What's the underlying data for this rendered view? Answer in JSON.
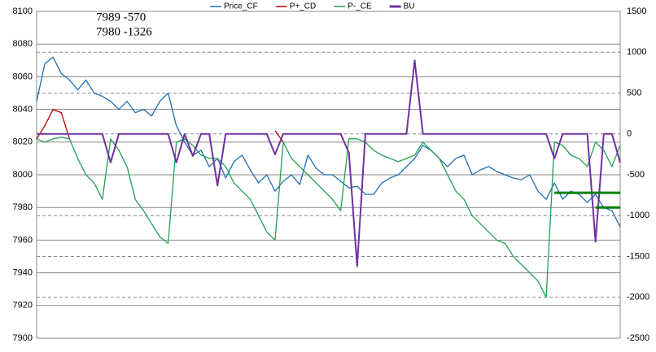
{
  "chart_data": {
    "type": "line",
    "annotations": [
      "7989   -570",
      "7980   -1326"
    ],
    "ylim": [
      7900,
      8100
    ],
    "yticks": [
      7900,
      7920,
      7940,
      7960,
      7980,
      8000,
      8020,
      8040,
      8060,
      8080,
      8100
    ],
    "y2lim": [
      -2500,
      1500
    ],
    "y2ticks": [
      -2500,
      -2000,
      -1500,
      -1000,
      -500,
      0,
      500,
      1000,
      1500
    ],
    "grid": true,
    "legend": "top",
    "series": [
      {
        "name": "Price_CF",
        "color": "#1f6fb5",
        "values": [
          8045,
          8068,
          8072,
          8062,
          8058,
          8052,
          8058,
          8050,
          8048,
          8045,
          8040,
          8045,
          8038,
          8040,
          8036,
          8045,
          8050,
          8030,
          8020,
          8012,
          8015,
          8005,
          8010,
          7998,
          8008,
          8012,
          8003,
          7995,
          8000,
          7990,
          7996,
          8000,
          7994,
          8012,
          8004,
          8000,
          8000,
          7996,
          7992,
          7993,
          7988,
          7988,
          7995,
          7998,
          8000,
          8005,
          8010,
          8018,
          8015,
          8010,
          8005,
          8010,
          8012,
          8000,
          8003,
          8005,
          8002,
          8000,
          7998,
          7997,
          8000,
          7990,
          7985,
          7995,
          7985,
          7990,
          7988,
          7983,
          7988,
          7980,
          7978,
          7968
        ]
      },
      {
        "name": "P+_CD",
        "color": "#c00000",
        "values": [
          8022,
          8030,
          8040,
          8038,
          8022,
          null,
          null,
          null,
          null,
          null,
          null,
          null,
          null,
          null,
          null,
          null,
          null,
          null,
          null,
          null,
          null,
          null,
          null,
          null,
          null,
          null,
          null,
          null,
          null,
          8027,
          8020,
          null,
          null,
          null,
          null,
          null,
          null,
          null,
          null,
          null,
          null,
          null,
          null,
          null,
          null,
          null,
          null,
          null,
          null,
          null,
          null,
          null,
          null,
          null,
          null,
          null,
          null,
          null,
          null,
          null,
          null,
          null,
          null,
          null,
          null,
          null,
          null,
          null,
          null,
          null,
          null,
          null
        ]
      },
      {
        "name": "P-_CE",
        "color": "#22a050",
        "values": [
          8022,
          8020,
          8022,
          8023,
          8022,
          8010,
          8000,
          7995,
          7985,
          8022,
          8015,
          8005,
          7985,
          7978,
          7970,
          7962,
          7958,
          8020,
          8022,
          8018,
          8012,
          8010,
          8010,
          8005,
          7995,
          7990,
          7985,
          7975,
          7965,
          7960,
          8020,
          8010,
          8005,
          8000,
          7995,
          7990,
          7985,
          7978,
          8022,
          8022,
          8020,
          8015,
          8012,
          8010,
          8008,
          8010,
          8012,
          8020,
          8015,
          8010,
          8000,
          7990,
          7985,
          7975,
          7970,
          7965,
          7960,
          7958,
          7950,
          7945,
          7940,
          7935,
          7925,
          8020,
          8018,
          8012,
          8010,
          8005,
          8020,
          8015,
          8005,
          8018
        ]
      },
      {
        "name": "BU",
        "color": "#7030a0",
        "axis": "y2",
        "values": [
          0,
          0,
          0,
          0,
          0,
          0,
          0,
          0,
          0,
          -350,
          0,
          0,
          0,
          0,
          0,
          0,
          0,
          -350,
          0,
          -270,
          0,
          0,
          -630,
          0,
          0,
          0,
          0,
          0,
          0,
          -250,
          0,
          0,
          0,
          0,
          0,
          0,
          0,
          0,
          -230,
          -1620,
          0,
          0,
          0,
          0,
          0,
          0,
          900,
          0,
          0,
          0,
          0,
          0,
          0,
          0,
          0,
          0,
          0,
          0,
          0,
          0,
          0,
          0,
          0,
          -300,
          0,
          0,
          0,
          0,
          -1320,
          0,
          0,
          -350
        ]
      }
    ],
    "levels": [
      {
        "value": 7989,
        "start": 63,
        "end": 71,
        "color": "#008000"
      },
      {
        "value": 7980,
        "start": 68,
        "end": 71,
        "color": "#008000"
      }
    ]
  }
}
